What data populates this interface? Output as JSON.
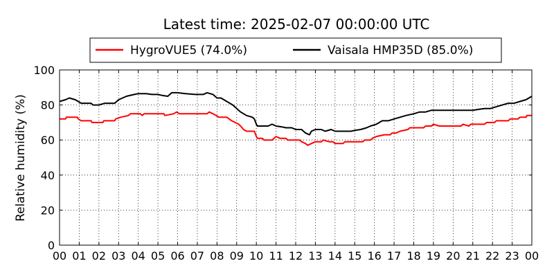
{
  "chart_data": {
    "type": "line",
    "title": "Latest time: 2025-02-07 00:00:00 UTC",
    "xlabel": "",
    "ylabel": "Relative humidity (%)",
    "xlim": [
      0,
      24
    ],
    "ylim": [
      0,
      100
    ],
    "x_tick_labels": [
      "00",
      "01",
      "02",
      "03",
      "04",
      "05",
      "06",
      "07",
      "08",
      "09",
      "10",
      "11",
      "12",
      "13",
      "14",
      "15",
      "16",
      "17",
      "18",
      "19",
      "20",
      "21",
      "22",
      "23",
      "00"
    ],
    "y_ticks": [
      0,
      20,
      40,
      60,
      80,
      100
    ],
    "grid": true,
    "legend_position": "top-center",
    "series": [
      {
        "name": "HygroVUE5 (74.0%)",
        "color": "#ff0000",
        "points": [
          [
            0,
            72
          ],
          [
            0.3,
            72
          ],
          [
            0.35,
            73
          ],
          [
            0.9,
            73
          ],
          [
            0.95,
            72
          ],
          [
            1.1,
            71
          ],
          [
            1.5,
            71
          ],
          [
            1.6,
            71
          ],
          [
            1.65,
            70
          ],
          [
            2.2,
            70
          ],
          [
            2.25,
            71
          ],
          [
            2.8,
            71
          ],
          [
            2.85,
            72
          ],
          [
            3.1,
            73
          ],
          [
            3.5,
            74
          ],
          [
            3.6,
            75
          ],
          [
            4.1,
            75
          ],
          [
            4.2,
            74
          ],
          [
            4.3,
            75
          ],
          [
            5.3,
            75
          ],
          [
            5.35,
            74
          ],
          [
            5.8,
            75
          ],
          [
            5.95,
            76
          ],
          [
            6.1,
            75
          ],
          [
            7.5,
            75
          ],
          [
            7.6,
            76
          ],
          [
            7.8,
            75
          ],
          [
            7.95,
            74
          ],
          [
            8.1,
            73
          ],
          [
            8.5,
            73
          ],
          [
            8.75,
            71
          ],
          [
            9.1,
            69
          ],
          [
            9.2,
            68
          ],
          [
            9.35,
            66
          ],
          [
            9.5,
            65
          ],
          [
            9.9,
            65
          ],
          [
            10.0,
            62
          ],
          [
            10.05,
            61
          ],
          [
            10.3,
            61
          ],
          [
            10.4,
            60
          ],
          [
            10.8,
            60
          ],
          [
            10.9,
            61
          ],
          [
            11.0,
            62
          ],
          [
            11.2,
            61
          ],
          [
            11.5,
            61
          ],
          [
            11.6,
            60
          ],
          [
            12.2,
            60
          ],
          [
            12.3,
            59
          ],
          [
            12.5,
            58
          ],
          [
            12.6,
            57
          ],
          [
            12.8,
            58
          ],
          [
            13.0,
            59
          ],
          [
            13.3,
            59
          ],
          [
            13.4,
            60
          ],
          [
            13.7,
            59
          ],
          [
            13.9,
            59
          ],
          [
            14.0,
            58
          ],
          [
            14.4,
            58
          ],
          [
            14.5,
            59
          ],
          [
            15.4,
            59
          ],
          [
            15.5,
            60
          ],
          [
            15.8,
            60
          ],
          [
            15.9,
            61
          ],
          [
            16.1,
            62
          ],
          [
            16.5,
            63
          ],
          [
            16.8,
            63
          ],
          [
            16.9,
            64
          ],
          [
            17.1,
            64
          ],
          [
            17.3,
            65
          ],
          [
            17.7,
            66
          ],
          [
            17.8,
            67
          ],
          [
            18.5,
            67
          ],
          [
            18.6,
            68
          ],
          [
            18.9,
            68
          ],
          [
            19.0,
            69
          ],
          [
            19.3,
            68
          ],
          [
            20.4,
            68
          ],
          [
            20.5,
            69
          ],
          [
            20.8,
            68
          ],
          [
            20.9,
            69
          ],
          [
            21.6,
            69
          ],
          [
            21.7,
            70
          ],
          [
            22.1,
            70
          ],
          [
            22.2,
            71
          ],
          [
            22.8,
            71
          ],
          [
            22.9,
            72
          ],
          [
            23.3,
            72
          ],
          [
            23.4,
            73
          ],
          [
            23.7,
            73
          ],
          [
            23.75,
            74
          ],
          [
            24,
            74
          ]
        ]
      },
      {
        "name": "Vaisala HMP35D (85.0%)",
        "color": "#000000",
        "points": [
          [
            0,
            82
          ],
          [
            0.3,
            83
          ],
          [
            0.5,
            84
          ],
          [
            0.8,
            83
          ],
          [
            1.1,
            81
          ],
          [
            1.6,
            81
          ],
          [
            1.7,
            80
          ],
          [
            2.0,
            80
          ],
          [
            2.3,
            81
          ],
          [
            2.8,
            81
          ],
          [
            3.0,
            83
          ],
          [
            3.4,
            85
          ],
          [
            3.8,
            86
          ],
          [
            4.0,
            86.5
          ],
          [
            4.4,
            86.5
          ],
          [
            4.7,
            86
          ],
          [
            5.0,
            86
          ],
          [
            5.2,
            85.5
          ],
          [
            5.5,
            85
          ],
          [
            5.7,
            87
          ],
          [
            6.0,
            87
          ],
          [
            6.4,
            86.5
          ],
          [
            6.9,
            86
          ],
          [
            7.3,
            86
          ],
          [
            7.5,
            87
          ],
          [
            7.8,
            86
          ],
          [
            8.0,
            84
          ],
          [
            8.2,
            84
          ],
          [
            8.5,
            82
          ],
          [
            8.8,
            80
          ],
          [
            9.0,
            78
          ],
          [
            9.2,
            76
          ],
          [
            9.5,
            74
          ],
          [
            9.8,
            73
          ],
          [
            9.9,
            72
          ],
          [
            10.0,
            69
          ],
          [
            10.05,
            68
          ],
          [
            10.3,
            68
          ],
          [
            10.6,
            68
          ],
          [
            10.8,
            69
          ],
          [
            11.0,
            68
          ],
          [
            11.3,
            67.5
          ],
          [
            11.5,
            67
          ],
          [
            11.8,
            67
          ],
          [
            12.0,
            66
          ],
          [
            12.3,
            66
          ],
          [
            12.5,
            64
          ],
          [
            12.7,
            63
          ],
          [
            12.8,
            65
          ],
          [
            13.0,
            66
          ],
          [
            13.3,
            66
          ],
          [
            13.5,
            65
          ],
          [
            13.8,
            66
          ],
          [
            14.0,
            65
          ],
          [
            14.3,
            65
          ],
          [
            14.5,
            65
          ],
          [
            14.8,
            65
          ],
          [
            15.0,
            65.5
          ],
          [
            15.3,
            66
          ],
          [
            15.6,
            67
          ],
          [
            15.8,
            68
          ],
          [
            16.1,
            69
          ],
          [
            16.4,
            71
          ],
          [
            16.7,
            71
          ],
          [
            17.0,
            72
          ],
          [
            17.3,
            73
          ],
          [
            17.6,
            74
          ],
          [
            18.0,
            75
          ],
          [
            18.3,
            76
          ],
          [
            18.6,
            76
          ],
          [
            18.9,
            77
          ],
          [
            19.2,
            77
          ],
          [
            19.5,
            77
          ],
          [
            19.8,
            77
          ],
          [
            20.1,
            77
          ],
          [
            20.4,
            77
          ],
          [
            20.7,
            77
          ],
          [
            21.0,
            77
          ],
          [
            21.3,
            77.5
          ],
          [
            21.6,
            78
          ],
          [
            21.9,
            78
          ],
          [
            22.2,
            79
          ],
          [
            22.5,
            80
          ],
          [
            22.8,
            81
          ],
          [
            23.1,
            81
          ],
          [
            23.4,
            82
          ],
          [
            23.7,
            83
          ],
          [
            24,
            85
          ]
        ]
      }
    ]
  }
}
